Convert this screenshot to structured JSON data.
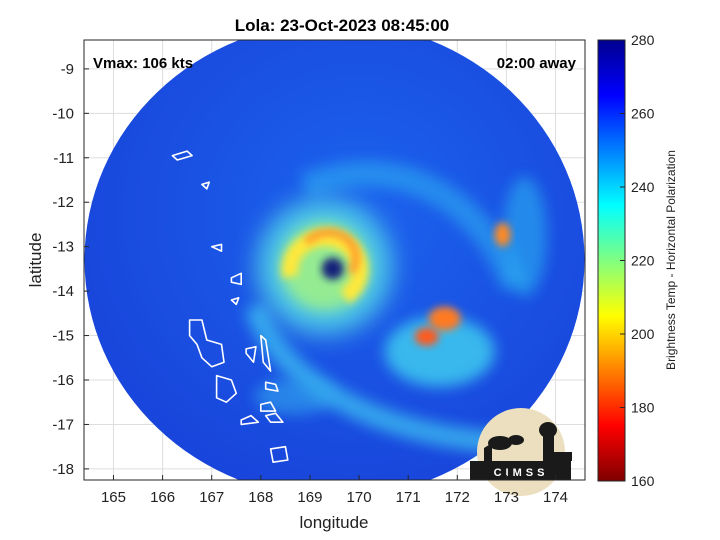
{
  "chart_data": {
    "type": "heatmap",
    "title": "Lola: 23-Oct-2023 08:45:00",
    "annotations": {
      "vmax": "Vmax: 106 kts",
      "time_away": "02:00 away"
    },
    "xlabel": "longitude",
    "ylabel": "latitude",
    "xlim": [
      164.4,
      174.6
    ],
    "ylim": [
      -18.25,
      -8.35
    ],
    "x_ticks": [
      165,
      166,
      167,
      168,
      169,
      170,
      171,
      172,
      173,
      174
    ],
    "y_ticks": [
      -9,
      -10,
      -11,
      -12,
      -13,
      -14,
      -15,
      -16,
      -17,
      -18
    ],
    "grid": true,
    "storm_center": {
      "lon": 169.3,
      "lat": -13.45
    },
    "scan_center": {
      "lon": 169.5,
      "lat": -13.3
    },
    "colorbar": {
      "label": "Brightness Temp - Horizontal Polarization",
      "range": [
        160,
        280
      ],
      "ticks": [
        160,
        180,
        200,
        220,
        240,
        260,
        280
      ],
      "colormap": [
        "#7f0000",
        "#ff0000",
        "#ff8000",
        "#ffff00",
        "#80ff80",
        "#00ffff",
        "#0080ff",
        "#0000ff",
        "#00008f"
      ]
    },
    "logo_text": "CIMSS"
  },
  "colors": {
    "background": "#ffffff",
    "axes_bg": "#ffffff",
    "grid": "#dddddd",
    "coast": "#ffffff"
  }
}
